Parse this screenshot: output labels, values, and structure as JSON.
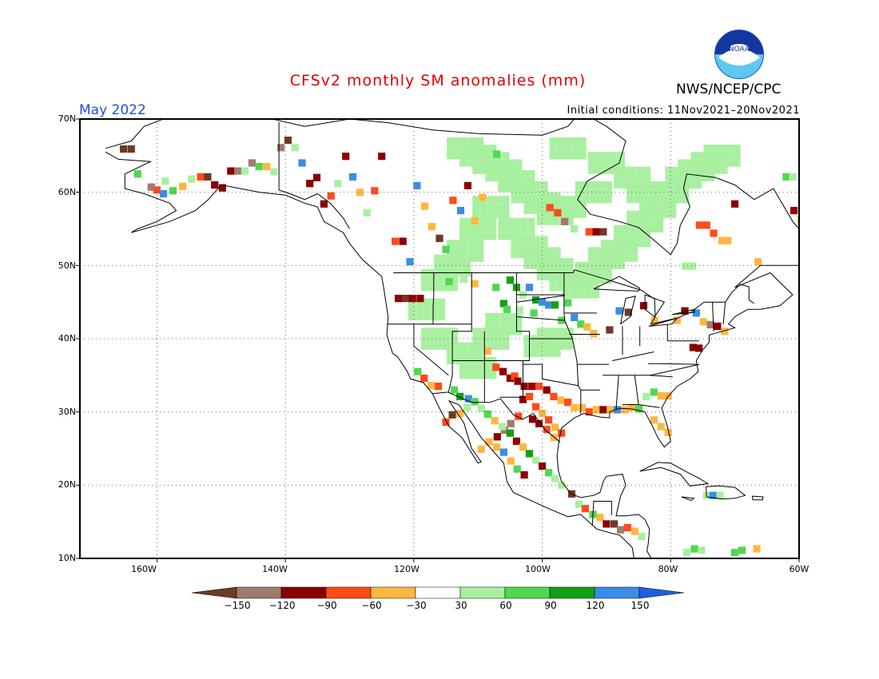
{
  "title": "CFSv2 monthly SM anomalies (mm)",
  "agency": "NWS/NCEP/CPC",
  "valid_month": "May 2022",
  "initial_conditions": "Initial conditions: 11Nov2021–20Nov2021",
  "logo": {
    "name": "noaa-logo",
    "text": "NOAA"
  },
  "lat_labels": [
    "70N",
    "60N",
    "50N",
    "40N",
    "30N",
    "20N",
    "10N"
  ],
  "lon_labels": [
    "160W",
    "140W",
    "120W",
    "100W",
    "80W",
    "60W"
  ],
  "colorbar": {
    "ticks": [
      "−150",
      "−120",
      "−90",
      "−60",
      "−30",
      "30",
      "60",
      "90",
      "120",
      "150"
    ],
    "colors": [
      "#6e3a25",
      "#a07a6e",
      "#8b0000",
      "#ff4b1a",
      "#ffb640",
      "#ffffff",
      "#a8f0a0",
      "#50d850",
      "#14a014",
      "#3c8ce6",
      "#1f5fe0"
    ]
  }
}
